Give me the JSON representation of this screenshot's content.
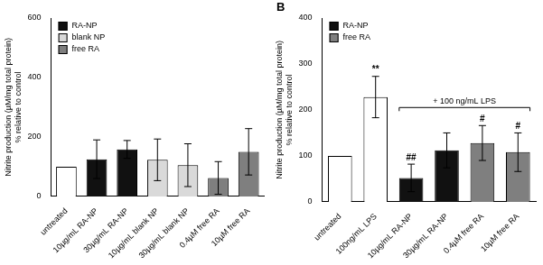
{
  "chart_data": [
    {
      "type": "bar",
      "y_label": [
        "Nitrite production (µM/mg total protein)",
        "% relative to control"
      ],
      "categories": [
        "untreated",
        "10µg/mL RA-NP",
        "30µg/mL RA-NP",
        "10µg/mL blank NP",
        "30µg/mL blank NP",
        "0.4µM free RA",
        "10µM free RA"
      ],
      "series": [
        {
          "color": "#ffffff",
          "values": [
            100,
            null,
            null,
            null,
            null,
            null,
            null
          ],
          "errors": [
            null,
            null,
            null,
            null,
            null,
            null,
            null
          ]
        },
        {
          "name": "RA-NP",
          "color": "#111111",
          "values": [
            null,
            125,
            158,
            null,
            null,
            null,
            null
          ],
          "errors": [
            null,
            65,
            30,
            null,
            null,
            null,
            null
          ]
        },
        {
          "name": "blank NP",
          "color": "#d9d9d9",
          "values": [
            null,
            null,
            null,
            123,
            105,
            null,
            null
          ],
          "errors": [
            null,
            null,
            null,
            70,
            72,
            null,
            null
          ]
        },
        {
          "name": "free RA",
          "color": "#7f7f7f",
          "values": [
            null,
            null,
            null,
            null,
            null,
            62,
            150
          ],
          "errors": [
            null,
            null,
            null,
            null,
            null,
            55,
            78
          ]
        }
      ],
      "ylim": [
        0,
        600
      ],
      "yticks": [
        0,
        200,
        400,
        600
      ],
      "grid": false,
      "legend": "upper left"
    },
    {
      "type": "bar",
      "title": "B",
      "y_label": [
        "Nitrite production (µM/mg total protein)",
        "% relative to control"
      ],
      "categories": [
        "untreated",
        "100ng/mL LPS",
        "10µg/mL RA-NP",
        "30µg/mL RA-NP",
        "0.4µM free RA",
        "10µM free RA"
      ],
      "series": [
        {
          "color": "#ffffff",
          "values": [
            100,
            228,
            null,
            null,
            null,
            null
          ],
          "errors": [
            null,
            45,
            null,
            null,
            null,
            null
          ]
        },
        {
          "name": "RA-NP",
          "color": "#111111",
          "values": [
            null,
            null,
            52,
            112,
            null,
            null
          ],
          "errors": [
            null,
            null,
            30,
            38,
            null,
            null
          ]
        },
        {
          "name": "free RA",
          "color": "#7f7f7f",
          "values": [
            null,
            null,
            null,
            null,
            128,
            108
          ],
          "errors": [
            null,
            null,
            null,
            null,
            38,
            42
          ]
        }
      ],
      "annotations": [
        {
          "text": "**",
          "x": "100ng/mL LPS"
        },
        {
          "text": "##",
          "x": "10µg/mL RA-NP"
        },
        {
          "text": "#",
          "x": "0.4µM free RA"
        },
        {
          "text": "#",
          "x": "10µM free RA"
        },
        {
          "text": "+ 100 ng/mL LPS",
          "from": "10µg/mL RA-NP",
          "to": "10µM free RA"
        }
      ],
      "ylim": [
        0,
        400
      ],
      "yticks": [
        0,
        100,
        200,
        300,
        400
      ],
      "grid": false,
      "legend": "upper left"
    }
  ]
}
